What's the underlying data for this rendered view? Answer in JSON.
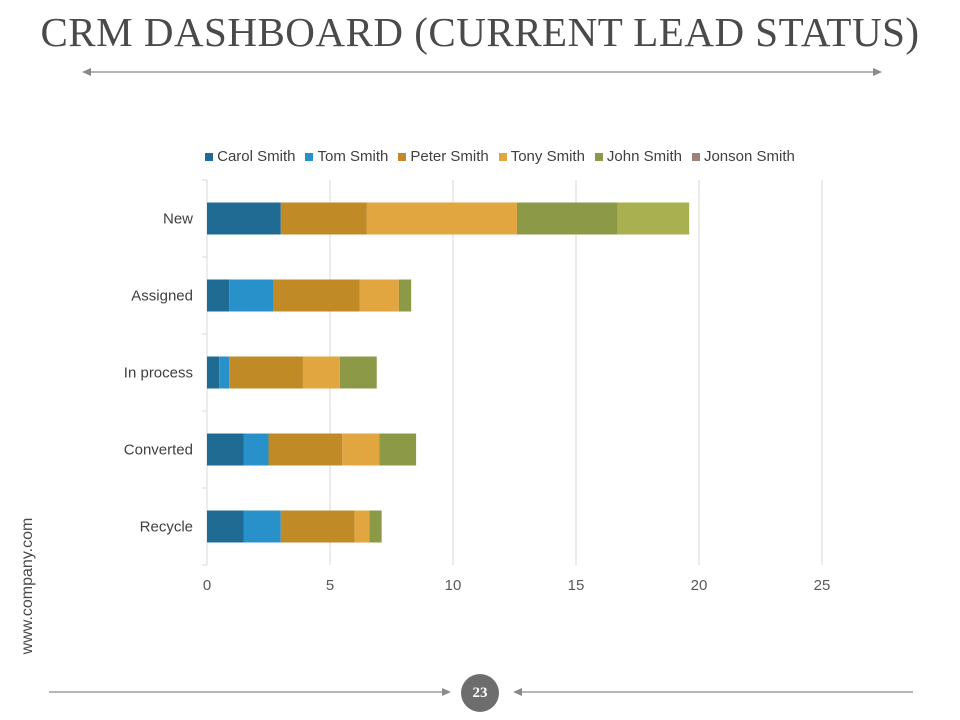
{
  "slide": {
    "title": "CRM DASHBOARD (CURRENT LEAD STATUS)",
    "side_text": "www.company.com",
    "page_number": "23"
  },
  "colors": {
    "title": "#4a4a4a",
    "rule": "#8a8a8a",
    "page_badge": "#6d6d6d",
    "gridline": "#d9d9d9"
  },
  "chart_data": {
    "type": "bar",
    "orientation": "horizontal",
    "stacked": true,
    "title": "",
    "xlabel": "",
    "ylabel": "",
    "xlim": [
      0,
      25
    ],
    "xticks": [
      0,
      5,
      10,
      15,
      20,
      25
    ],
    "grid": true,
    "legend_position": "top",
    "categories": [
      "New",
      "Assigned",
      "In process",
      "Converted",
      "Recycle"
    ],
    "series": [
      {
        "name": "Carol Smith",
        "color": "#1f6b93",
        "values": [
          3,
          0.9,
          0.5,
          1.5,
          1.5
        ]
      },
      {
        "name": "Tom Smith",
        "color": "#2891c9",
        "values": [
          0,
          1.8,
          0.4,
          1,
          1.5
        ]
      },
      {
        "name": "Peter Smith",
        "color": "#c08a27",
        "values": [
          3.5,
          3.5,
          3,
          3,
          3
        ]
      },
      {
        "name": "Tony Smith",
        "color": "#e2a640",
        "values": [
          6.1,
          1.6,
          1.5,
          1.5,
          0.6
        ]
      },
      {
        "name": "John Smith",
        "color": "#8c9a47",
        "values": [
          4.1,
          0.5,
          1.5,
          1.5,
          0.5
        ]
      },
      {
        "name": "Jonson Smith",
        "color": "#a9b04f",
        "values": [
          2.9,
          0,
          0,
          0,
          0
        ]
      }
    ],
    "legend_swatch_colors": [
      "#1f6b93",
      "#2891c9",
      "#c08a27",
      "#e2a640",
      "#8c9a47",
      "#9a8478"
    ]
  }
}
